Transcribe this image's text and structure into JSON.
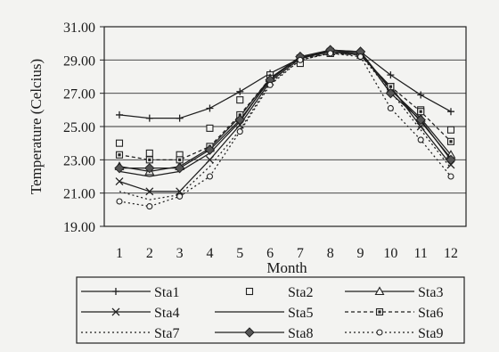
{
  "chart_data": {
    "type": "line",
    "title": "",
    "xlabel": "Month",
    "ylabel": "Temperature (Celcius)",
    "x": [
      1,
      2,
      3,
      4,
      5,
      6,
      7,
      8,
      9,
      10,
      11,
      12
    ],
    "x_tick_labels": [
      "1",
      "2",
      "3",
      "4",
      "5",
      "6",
      "7",
      "8",
      "9",
      "10",
      "11",
      "12"
    ],
    "ylim": [
      19,
      31
    ],
    "y_ticks": [
      19,
      21,
      23,
      25,
      27,
      29,
      31
    ],
    "y_tick_labels": [
      "19.00",
      "21.00",
      "23.00",
      "25.00",
      "27.00",
      "29.00",
      "31.00"
    ],
    "grid": "horizontal",
    "legend_position": "bottom",
    "series": [
      {
        "name": "Sta1",
        "style": "solid",
        "marker": "plus",
        "values": [
          25.7,
          25.5,
          25.5,
          26.1,
          27.1,
          28.2,
          29.1,
          29.6,
          29.5,
          28.1,
          26.9,
          25.9
        ]
      },
      {
        "name": "Sta2",
        "style": "none",
        "marker": "open-square",
        "values": [
          24.0,
          23.4,
          23.3,
          24.9,
          26.6,
          28.1,
          28.8,
          29.4,
          29.3,
          27.4,
          26.0,
          24.8
        ]
      },
      {
        "name": "Sta3",
        "style": "solid",
        "marker": "triangle",
        "values": [
          22.6,
          22.3,
          22.6,
          23.7,
          25.6,
          27.9,
          29.2,
          29.5,
          29.5,
          27.2,
          25.5,
          23.3
        ]
      },
      {
        "name": "Sta4",
        "style": "solid",
        "marker": "x",
        "values": [
          21.7,
          21.1,
          21.1,
          23.0,
          25.1,
          27.7,
          29.1,
          29.5,
          29.3,
          27.4,
          25.0,
          22.7
        ]
      },
      {
        "name": "Sta5",
        "style": "solid",
        "marker": "none",
        "values": [
          22.3,
          22.0,
          22.3,
          23.4,
          25.3,
          27.9,
          29.2,
          29.5,
          29.4,
          27.3,
          25.3,
          23.1
        ]
      },
      {
        "name": "Sta6",
        "style": "dashed",
        "marker": "filled-square",
        "values": [
          23.3,
          23.0,
          23.0,
          23.8,
          25.7,
          27.9,
          29.1,
          29.4,
          29.3,
          27.4,
          25.9,
          24.1
        ]
      },
      {
        "name": "Sta7",
        "style": "dotted",
        "marker": "none",
        "values": [
          21.1,
          20.6,
          20.9,
          22.6,
          24.8,
          27.6,
          29.0,
          29.4,
          29.3,
          27.1,
          24.8,
          22.5
        ]
      },
      {
        "name": "Sta8",
        "style": "solid",
        "marker": "diamond",
        "values": [
          22.5,
          22.5,
          22.5,
          23.6,
          25.4,
          27.8,
          29.2,
          29.6,
          29.5,
          27.0,
          25.4,
          23.0
        ]
      },
      {
        "name": "Sta9",
        "style": "dotted",
        "marker": "circle",
        "values": [
          20.5,
          20.2,
          20.8,
          22.0,
          24.7,
          27.5,
          29.0,
          29.4,
          29.2,
          26.1,
          24.2,
          22.0
        ]
      }
    ]
  }
}
